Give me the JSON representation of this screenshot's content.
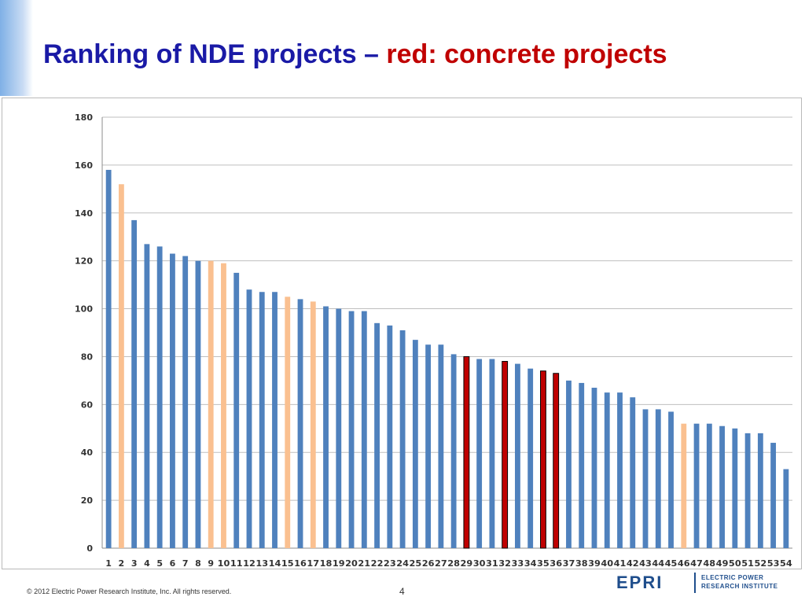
{
  "title": {
    "part1": "Ranking of NDE projects – ",
    "part2": "red: concrete projects"
  },
  "colors": {
    "title_blue": "#1a1aa6",
    "title_red": "#c00000",
    "bar_default": "#4f81bd",
    "bar_highlight": "#fac090",
    "bar_concrete": "#c00000"
  },
  "chart_data": {
    "type": "bar",
    "title": "",
    "xlabel": "",
    "ylabel": "",
    "ylim": [
      0,
      180
    ],
    "yticks": [
      0,
      20,
      40,
      60,
      80,
      100,
      120,
      140,
      160,
      180
    ],
    "grid": true,
    "categories": [
      "1",
      "2",
      "3",
      "4",
      "5",
      "6",
      "7",
      "8",
      "9",
      "10",
      "11",
      "12",
      "13",
      "14",
      "15",
      "16",
      "17",
      "18",
      "19",
      "20",
      "21",
      "22",
      "23",
      "24",
      "25",
      "26",
      "27",
      "28",
      "29",
      "30",
      "31",
      "32",
      "33",
      "34",
      "35",
      "36",
      "37",
      "38",
      "39",
      "40",
      "41",
      "42",
      "43",
      "44",
      "45",
      "46",
      "47",
      "48",
      "49",
      "50",
      "51",
      "52",
      "53",
      "54"
    ],
    "values": [
      158,
      152,
      137,
      127,
      126,
      123,
      122,
      120,
      120,
      119,
      115,
      108,
      107,
      107,
      105,
      104,
      103,
      101,
      100,
      99,
      99,
      94,
      93,
      91,
      87,
      85,
      85,
      81,
      80,
      79,
      79,
      78,
      77,
      75,
      74,
      73,
      70,
      69,
      67,
      65,
      65,
      63,
      58,
      58,
      57,
      52,
      52,
      52,
      51,
      50,
      48,
      48,
      44,
      33
    ],
    "colors": [
      "default",
      "highlight",
      "default",
      "default",
      "default",
      "default",
      "default",
      "default",
      "highlight",
      "highlight",
      "default",
      "default",
      "default",
      "default",
      "highlight",
      "default",
      "highlight",
      "default",
      "default",
      "default",
      "default",
      "default",
      "default",
      "default",
      "default",
      "default",
      "default",
      "default",
      "concrete",
      "default",
      "default",
      "concrete",
      "default",
      "default",
      "concrete",
      "concrete",
      "default",
      "default",
      "default",
      "default",
      "default",
      "default",
      "default",
      "default",
      "default",
      "highlight",
      "default",
      "default",
      "default",
      "default",
      "default",
      "default",
      "default",
      "default"
    ]
  },
  "footer": {
    "copyright": "© 2012 Electric Power Research Institute, Inc. All rights reserved.",
    "page_number": "4"
  },
  "logo": {
    "mark": "EPRI",
    "line1": "ELECTRIC POWER",
    "line2": "RESEARCH INSTITUTE"
  }
}
